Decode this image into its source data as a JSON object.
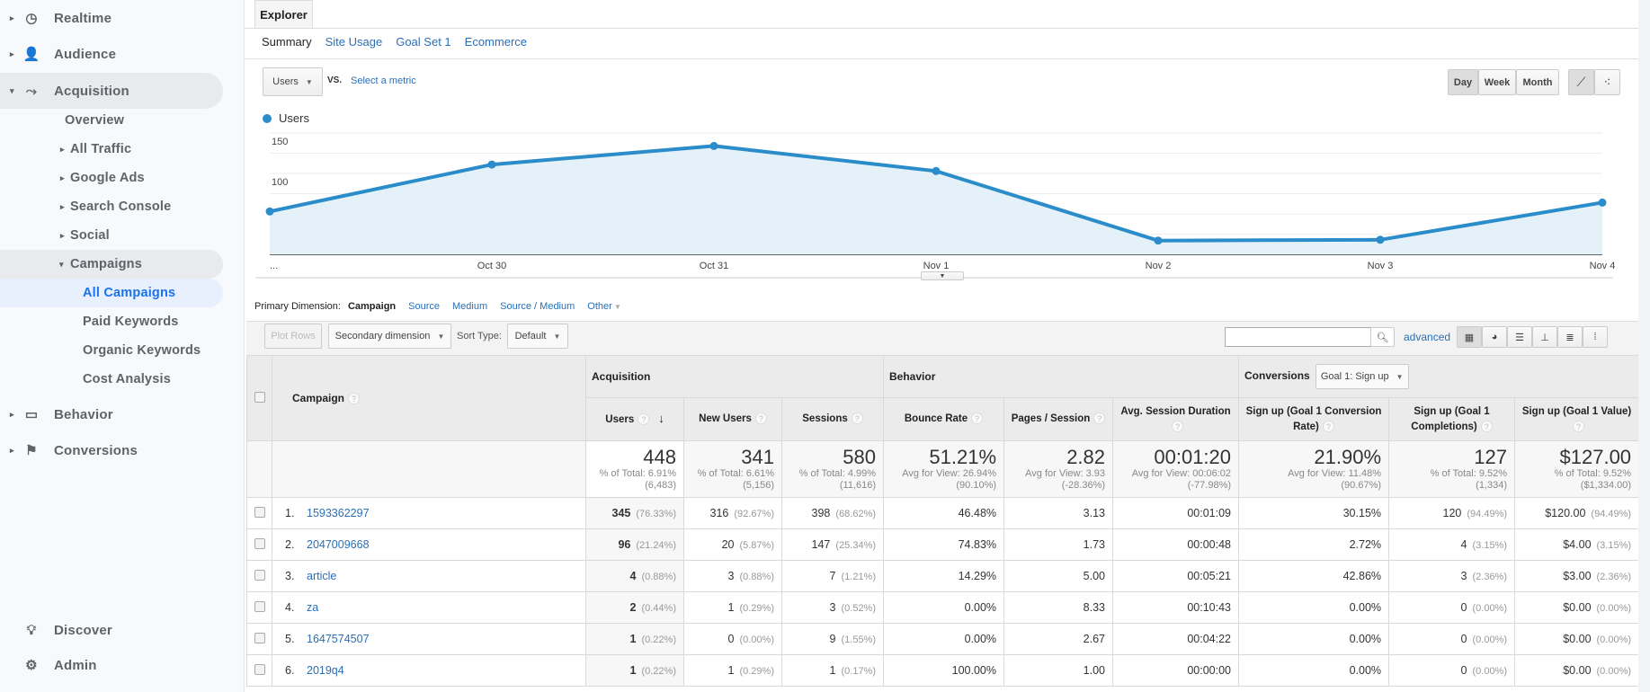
{
  "sidebar": {
    "items": [
      {
        "label": "Realtime",
        "icon": "clock-icon"
      },
      {
        "label": "Audience",
        "icon": "person-icon"
      },
      {
        "label": "Acquisition",
        "icon": "acquisition-icon"
      },
      {
        "label": "Overview"
      },
      {
        "label": "All Traffic"
      },
      {
        "label": "Google Ads"
      },
      {
        "label": "Search Console"
      },
      {
        "label": "Social"
      },
      {
        "label": "Campaigns"
      },
      {
        "label": "All Campaigns"
      },
      {
        "label": "Paid Keywords"
      },
      {
        "label": "Organic Keywords"
      },
      {
        "label": "Cost Analysis"
      },
      {
        "label": "Behavior",
        "icon": "behavior-icon"
      },
      {
        "label": "Conversions",
        "icon": "flag-icon"
      }
    ],
    "discover": "Discover",
    "admin": "Admin"
  },
  "explorer": {
    "tab": "Explorer",
    "subtabs": [
      "Summary",
      "Site Usage",
      "Goal Set 1",
      "Ecommerce"
    ],
    "metric": "Users",
    "vs": "VS.",
    "select_metric": "Select a metric",
    "periods": [
      "Day",
      "Week",
      "Month"
    ],
    "active_period": "Day"
  },
  "chart_data": {
    "type": "area",
    "series": [
      {
        "name": "Users",
        "values": [
          53,
          111,
          134,
          103,
          17,
          18,
          64
        ]
      }
    ],
    "x": [
      "...",
      "Oct 30",
      "Oct 31",
      "Nov 1",
      "Nov 2",
      "Nov 3",
      "Nov 4"
    ],
    "yticks": [
      50,
      100,
      150
    ],
    "ylim": [
      0,
      150
    ],
    "color": "#2b8cca",
    "grid": true,
    "legend": "top-left"
  },
  "dimension": {
    "label": "Primary Dimension:",
    "active": "Campaign",
    "options": [
      "Source",
      "Medium",
      "Source / Medium",
      "Other"
    ]
  },
  "toolbar": {
    "plot_rows": "Plot Rows",
    "secondary": "Secondary dimension",
    "sort_label": "Sort Type:",
    "sort_value": "Default",
    "search_placeholder": "",
    "advanced": "advanced"
  },
  "table": {
    "groups": {
      "acquisition": "Acquisition",
      "behavior": "Behavior",
      "conversions": "Conversions",
      "goal": "Goal 1: Sign up"
    },
    "headers": [
      "Campaign",
      "Users",
      "New Users",
      "Sessions",
      "Bounce Rate",
      "Pages / Session",
      "Avg. Session Duration",
      "Sign up (Goal 1 Conversion Rate)",
      "Sign up (Goal 1 Completions)",
      "Sign up (Goal 1 Value)"
    ],
    "totals": [
      {
        "v": "448",
        "s1": "% of Total: 6.91%",
        "s2": "(6,483)"
      },
      {
        "v": "341",
        "s1": "% of Total: 6.61%",
        "s2": "(5,156)"
      },
      {
        "v": "580",
        "s1": "% of Total: 4.99%",
        "s2": "(11,616)"
      },
      {
        "v": "51.21%",
        "s1": "Avg for View: 26.94%",
        "s2": "(90.10%)"
      },
      {
        "v": "2.82",
        "s1": "Avg for View: 3.93",
        "s2": "(-28.36%)"
      },
      {
        "v": "00:01:20",
        "s1": "Avg for View: 00:06:02",
        "s2": "(-77.98%)"
      },
      {
        "v": "21.90%",
        "s1": "Avg for View: 11.48%",
        "s2": "(90.67%)"
      },
      {
        "v": "127",
        "s1": "% of Total: 9.52% (1,334)",
        "s2": ""
      },
      {
        "v": "$127.00",
        "s1": "% of Total: 9.52%",
        "s2": "($1,334.00)"
      }
    ],
    "rows": [
      {
        "n": "1.",
        "name": "1593362297",
        "users": "345",
        "users_p": "(76.33%)",
        "new": "316",
        "new_p": "(92.67%)",
        "sess": "398",
        "sess_p": "(68.62%)",
        "bounce": "46.48%",
        "pages": "3.13",
        "dur": "00:01:09",
        "conv": "30.15%",
        "comp": "120",
        "comp_p": "(94.49%)",
        "val": "$120.00",
        "val_p": "(94.49%)"
      },
      {
        "n": "2.",
        "name": "2047009668",
        "users": "96",
        "users_p": "(21.24%)",
        "new": "20",
        "new_p": "(5.87%)",
        "sess": "147",
        "sess_p": "(25.34%)",
        "bounce": "74.83%",
        "pages": "1.73",
        "dur": "00:00:48",
        "conv": "2.72%",
        "comp": "4",
        "comp_p": "(3.15%)",
        "val": "$4.00",
        "val_p": "(3.15%)"
      },
      {
        "n": "3.",
        "name": "article",
        "users": "4",
        "users_p": "(0.88%)",
        "new": "3",
        "new_p": "(0.88%)",
        "sess": "7",
        "sess_p": "(1.21%)",
        "bounce": "14.29%",
        "pages": "5.00",
        "dur": "00:05:21",
        "conv": "42.86%",
        "comp": "3",
        "comp_p": "(2.36%)",
        "val": "$3.00",
        "val_p": "(2.36%)"
      },
      {
        "n": "4.",
        "name": "za",
        "users": "2",
        "users_p": "(0.44%)",
        "new": "1",
        "new_p": "(0.29%)",
        "sess": "3",
        "sess_p": "(0.52%)",
        "bounce": "0.00%",
        "pages": "8.33",
        "dur": "00:10:43",
        "conv": "0.00%",
        "comp": "0",
        "comp_p": "(0.00%)",
        "val": "$0.00",
        "val_p": "(0.00%)"
      },
      {
        "n": "5.",
        "name": "1647574507",
        "users": "1",
        "users_p": "(0.22%)",
        "new": "0",
        "new_p": "(0.00%)",
        "sess": "9",
        "sess_p": "(1.55%)",
        "bounce": "0.00%",
        "pages": "2.67",
        "dur": "00:04:22",
        "conv": "0.00%",
        "comp": "0",
        "comp_p": "(0.00%)",
        "val": "$0.00",
        "val_p": "(0.00%)"
      },
      {
        "n": "6.",
        "name": "2019q4",
        "users": "1",
        "users_p": "(0.22%)",
        "new": "1",
        "new_p": "(0.29%)",
        "sess": "1",
        "sess_p": "(0.17%)",
        "bounce": "100.00%",
        "pages": "1.00",
        "dur": "00:00:00",
        "conv": "0.00%",
        "comp": "0",
        "comp_p": "(0.00%)",
        "val": "$0.00",
        "val_p": "(0.00%)"
      }
    ]
  }
}
